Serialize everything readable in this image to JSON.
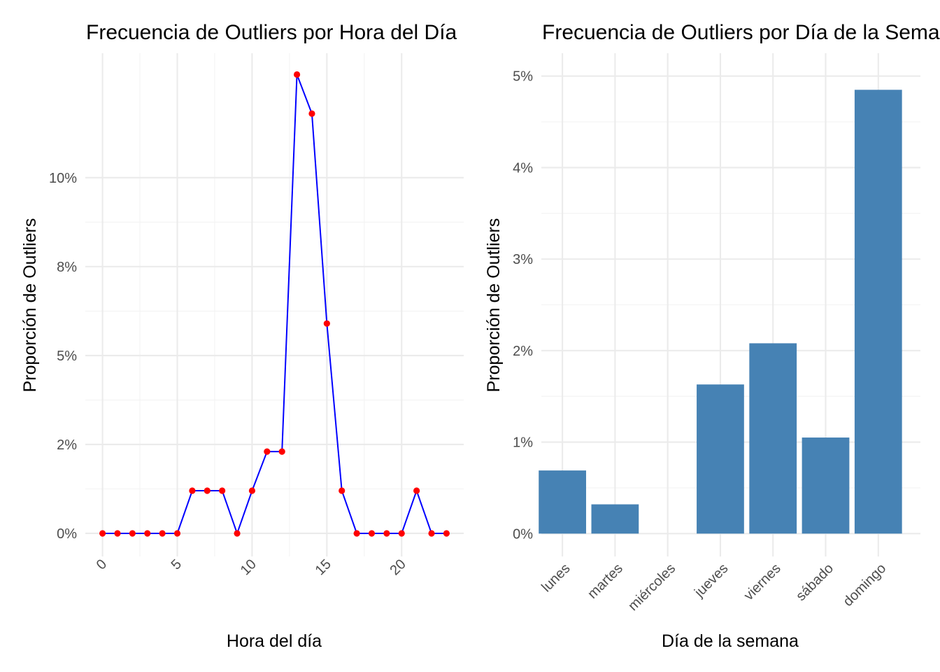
{
  "chart_data": [
    {
      "type": "line",
      "title": "Frecuencia de Outliers por Hora del Día",
      "xlabel": "Hora del día",
      "ylabel": "Proporción de Outliers",
      "x": [
        0,
        1,
        2,
        3,
        4,
        5,
        6,
        7,
        8,
        9,
        10,
        11,
        12,
        13,
        14,
        15,
        16,
        17,
        18,
        19,
        20,
        21,
        22,
        23
      ],
      "values": [
        0,
        0,
        0,
        0,
        0,
        0,
        1.2,
        1.2,
        1.2,
        0,
        1.2,
        2.3,
        2.3,
        12.9,
        11.8,
        5.9,
        1.2,
        0,
        0,
        0,
        0,
        1.2,
        0,
        0
      ],
      "xticks": [
        0,
        5,
        10,
        15,
        20
      ],
      "xtick_labels": [
        "0",
        "5",
        "10",
        "15",
        "20"
      ],
      "yticks": [
        0,
        2.5,
        5,
        7.5,
        10
      ],
      "ytick_labels": [
        "0%",
        "2%",
        "5%",
        "8%",
        "10%"
      ],
      "xlim": [
        -1.15,
        24.15
      ],
      "ylim": [
        -0.65,
        13.5
      ],
      "line_color": "#0000ff",
      "point_color": "#ff0000",
      "grid": true
    },
    {
      "type": "bar",
      "title": "Frecuencia de Outliers por Día de la Semana",
      "xlabel": "Día de la semana",
      "ylabel": "Proporción de Outliers",
      "categories": [
        "lunes",
        "martes",
        "miércoles",
        "jueves",
        "viernes",
        "sábado",
        "domingo"
      ],
      "values": [
        0.69,
        0.32,
        0,
        1.63,
        2.08,
        1.05,
        4.85
      ],
      "yticks": [
        0,
        1,
        2,
        3,
        4,
        5
      ],
      "ytick_labels": [
        "0%",
        "1%",
        "2%",
        "3%",
        "4%",
        "5%"
      ],
      "ylim": [
        -0.25,
        5.25
      ],
      "bar_color": "#4682b4",
      "grid": true
    }
  ]
}
